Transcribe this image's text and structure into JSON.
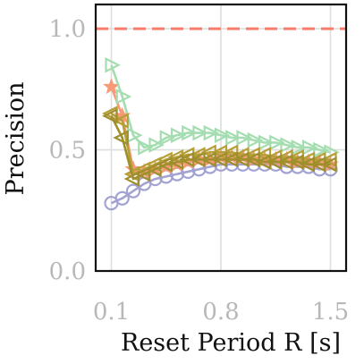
{
  "chart_data": {
    "type": "line",
    "xlabel": "Reset Period R [s]",
    "ylabel": "Precision",
    "x_tick_labels": [
      "0.1",
      "0.8",
      "1.5"
    ],
    "y_tick_labels": [
      "0.0",
      "0.5",
      "1.0"
    ],
    "x_ticks": [
      0.1,
      0.8,
      1.5
    ],
    "y_ticks": [
      0.0,
      0.5,
      1.0
    ],
    "xlim": [
      0.0,
      1.6
    ],
    "ylim": [
      0.0,
      1.1
    ],
    "grid": true,
    "legend": "none",
    "reference_line": {
      "y": 1.0,
      "style": "dashed",
      "color": "#f87c6c"
    },
    "series": [
      {
        "marker": "circle",
        "color": "#a3a3d3",
        "x": [
          0.1,
          0.17,
          0.24,
          0.31,
          0.38,
          0.45,
          0.52,
          0.59,
          0.66,
          0.73,
          0.8,
          0.87,
          0.94,
          1.01,
          1.08,
          1.15,
          1.22,
          1.29,
          1.36,
          1.43,
          1.5
        ],
        "y": [
          0.28,
          0.3,
          0.33,
          0.36,
          0.38,
          0.39,
          0.4,
          0.41,
          0.42,
          0.43,
          0.44,
          0.44,
          0.44,
          0.44,
          0.44,
          0.44,
          0.43,
          0.43,
          0.43,
          0.42,
          0.42
        ]
      },
      {
        "marker": "star",
        "color": "#f79a78",
        "x": [
          0.1,
          0.17,
          0.24,
          0.31,
          0.38,
          0.45,
          0.52,
          0.59,
          0.66,
          0.73,
          0.8,
          0.87,
          0.94,
          1.01,
          1.08,
          1.15,
          1.22,
          1.29,
          1.36,
          1.43,
          1.5
        ],
        "y": [
          0.76,
          0.64,
          0.42,
          0.41,
          0.42,
          0.43,
          0.44,
          0.45,
          0.46,
          0.46,
          0.47,
          0.47,
          0.47,
          0.46,
          0.46,
          0.46,
          0.46,
          0.45,
          0.45,
          0.45,
          0.44
        ]
      },
      {
        "marker": "triangle-right",
        "color": "#a4ddb0",
        "x": [
          0.1,
          0.17,
          0.24,
          0.31,
          0.38,
          0.45,
          0.52,
          0.59,
          0.66,
          0.73,
          0.8,
          0.87,
          0.94,
          1.01,
          1.08,
          1.15,
          1.22,
          1.29,
          1.36,
          1.43,
          1.5
        ],
        "y": [
          0.85,
          0.72,
          0.56,
          0.51,
          0.52,
          0.55,
          0.56,
          0.57,
          0.57,
          0.57,
          0.56,
          0.55,
          0.55,
          0.54,
          0.53,
          0.53,
          0.52,
          0.51,
          0.51,
          0.5,
          0.49
        ]
      },
      {
        "marker": "triangle-left",
        "color": "#b59f37",
        "x": [
          0.1,
          0.17,
          0.24,
          0.31,
          0.38,
          0.45,
          0.52,
          0.59,
          0.66,
          0.73,
          0.8,
          0.87,
          0.94,
          1.01,
          1.08,
          1.15,
          1.22,
          1.29,
          1.36,
          1.43,
          1.5
        ],
        "y": [
          0.65,
          0.62,
          0.4,
          0.42,
          0.44,
          0.46,
          0.47,
          0.48,
          0.48,
          0.49,
          0.49,
          0.49,
          0.48,
          0.48,
          0.48,
          0.47,
          0.47,
          0.47,
          0.46,
          0.46,
          0.46
        ]
      },
      {
        "marker": "triangle-left",
        "color": "#9e8f2c",
        "x": [
          0.1,
          0.17,
          0.24,
          0.31,
          0.38,
          0.45,
          0.52,
          0.59,
          0.66,
          0.73,
          0.8,
          0.87,
          0.94,
          1.01,
          1.08,
          1.15,
          1.22,
          1.29,
          1.36,
          1.43,
          1.5
        ],
        "y": [
          0.64,
          0.55,
          0.38,
          0.4,
          0.42,
          0.44,
          0.45,
          0.46,
          0.46,
          0.46,
          0.46,
          0.46,
          0.46,
          0.46,
          0.45,
          0.45,
          0.45,
          0.45,
          0.44,
          0.44,
          0.44
        ]
      }
    ]
  }
}
